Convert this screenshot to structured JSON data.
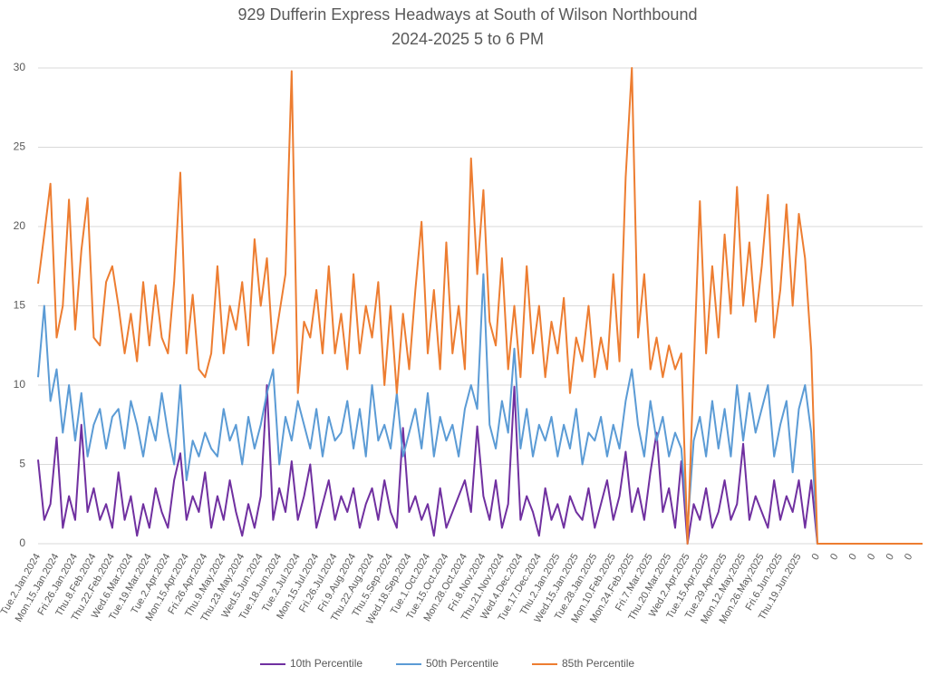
{
  "chart_data": {
    "type": "line",
    "title": "929 Dufferin Express Headways at South of Wilson Northbound",
    "subtitle": "2024-2025 5 to 6 PM",
    "categories": [
      "Tue.2.Jan.2024",
      null,
      null,
      "Mon.15.Jan.2024",
      null,
      null,
      "Fri.26.Jan.2024",
      null,
      null,
      "Thu.8.Feb.2024",
      null,
      null,
      "Thu.22.Feb.2024",
      null,
      null,
      "Wed.6.Mar.2024",
      null,
      null,
      "Tue.19.Mar.2024",
      null,
      null,
      "Tue.2.Apr.2024",
      null,
      null,
      "Mon.15.Apr.2024",
      null,
      null,
      "Fri.26.Apr.2024",
      null,
      null,
      "Thu.9.May.2024",
      null,
      null,
      "Thu.23.May.2024",
      null,
      null,
      "Wed.5.Jun.2024",
      null,
      null,
      "Tue.18.Jun.2024",
      null,
      null,
      "Tue.2.Jul.2024",
      null,
      null,
      "Mon.15.Jul.2024",
      null,
      null,
      "Fri.26.Jul.2024",
      null,
      null,
      "Fri.9.Aug.2024",
      null,
      null,
      "Thu.22.Aug.2024",
      null,
      null,
      "Thu.5.Sep.2024",
      null,
      null,
      "Wed.18.Sep.2024",
      null,
      null,
      "Tue.1.Oct.2024",
      null,
      null,
      "Tue.15.Oct.2024",
      null,
      null,
      "Mon.28.Oct.2024",
      null,
      null,
      "Fri.8.Nov.2024",
      null,
      null,
      "Thu.21.Nov.2024",
      null,
      null,
      "Wed.4.Dec.2024",
      null,
      null,
      "Tue.17.Dec.2024",
      null,
      null,
      "Thu.2.Jan.2025",
      null,
      null,
      "Wed.15.Jan.2025",
      null,
      null,
      "Tue.28.Jan.2025",
      null,
      null,
      "Mon.10.Feb.2025",
      null,
      null,
      "Mon.24.Feb.2025",
      null,
      null,
      "Fri.7.Mar.2025",
      null,
      null,
      "Thu.20.Mar.2025",
      null,
      null,
      "Wed.2.Apr.2025",
      null,
      null,
      "Tue.15.Apr.2025",
      null,
      null,
      "Tue.29.Apr.2025",
      null,
      null,
      "Mon.12.May.2025",
      null,
      null,
      "Mon.26.May.2025",
      null,
      null,
      "Fri.6.Jun.2025",
      null,
      null,
      "Thu.19.Jun.2025",
      null,
      null,
      "0",
      null,
      null,
      "0",
      null,
      null,
      "0",
      null,
      null,
      "0",
      null,
      null,
      "0",
      null,
      null,
      "0",
      null,
      null
    ],
    "series": [
      {
        "name": "10th Percentile",
        "color": "#7030a0",
        "values": [
          5.3,
          1.5,
          2.5,
          6.7,
          1.0,
          3.0,
          1.5,
          7.5,
          2.0,
          3.5,
          1.5,
          2.5,
          1.0,
          4.5,
          1.5,
          3.0,
          0.5,
          2.5,
          1.0,
          3.5,
          2.0,
          1.0,
          4.0,
          5.7,
          1.5,
          3.0,
          2.0,
          4.5,
          1.0,
          3.0,
          1.5,
          4.0,
          2.0,
          0.5,
          2.5,
          1.0,
          3.0,
          10.0,
          1.5,
          3.5,
          2.0,
          5.2,
          1.5,
          3.0,
          5.0,
          1.0,
          2.5,
          4.0,
          1.5,
          3.0,
          2.0,
          3.5,
          1.0,
          2.5,
          3.5,
          1.5,
          4.0,
          2.0,
          1.0,
          7.3,
          2.0,
          3.0,
          1.5,
          2.5,
          0.5,
          3.5,
          1.0,
          2.0,
          3.0,
          4.0,
          2.0,
          7.4,
          3.0,
          1.5,
          4.0,
          1.0,
          2.5,
          9.9,
          1.5,
          3.0,
          2.0,
          0.5,
          3.5,
          1.5,
          2.5,
          1.0,
          3.0,
          2.0,
          1.5,
          3.5,
          1.0,
          2.5,
          4.0,
          1.5,
          3.0,
          5.8,
          2.0,
          3.5,
          1.5,
          4.5,
          7.0,
          2.0,
          3.5,
          1.0,
          5.2,
          0.0,
          2.5,
          1.5,
          3.5,
          1.0,
          2.0,
          4.0,
          1.5,
          2.5,
          6.3,
          1.5,
          3.0,
          2.0,
          1.0,
          4.0,
          1.5,
          3.0,
          2.0,
          4.0,
          1.0,
          4.0,
          0,
          0,
          0,
          0,
          0,
          0,
          0,
          0,
          0,
          0,
          0,
          0,
          0,
          0,
          0,
          0,
          0,
          0
        ]
      },
      {
        "name": "50th Percentile",
        "color": "#5b9bd5",
        "values": [
          10.5,
          15.0,
          9.0,
          11.0,
          7.0,
          10.0,
          6.5,
          9.5,
          5.5,
          7.5,
          8.5,
          6.0,
          8.0,
          8.5,
          6.0,
          9.0,
          7.5,
          5.5,
          8.0,
          6.5,
          9.5,
          7.0,
          5.0,
          10.0,
          4.0,
          6.5,
          5.5,
          7.0,
          6.0,
          5.5,
          8.5,
          6.5,
          7.5,
          5.0,
          8.0,
          6.0,
          7.5,
          9.5,
          11.0,
          5.0,
          8.0,
          6.5,
          9.0,
          7.5,
          6.0,
          8.5,
          5.5,
          8.0,
          6.5,
          7.0,
          9.0,
          6.0,
          8.5,
          5.5,
          10.0,
          6.5,
          7.5,
          6.0,
          9.5,
          5.5,
          7.0,
          8.5,
          6.0,
          9.5,
          5.5,
          8.0,
          6.5,
          7.5,
          5.5,
          8.5,
          10.0,
          8.5,
          17.0,
          7.5,
          6.0,
          9.0,
          7.0,
          12.3,
          6.0,
          8.5,
          5.5,
          7.5,
          6.5,
          8.0,
          5.5,
          7.5,
          6.0,
          8.5,
          5.0,
          7.0,
          6.5,
          8.0,
          5.5,
          7.5,
          6.0,
          9.0,
          11.0,
          7.5,
          5.5,
          9.0,
          6.5,
          8.0,
          5.5,
          7.0,
          6.0,
          1.0,
          6.5,
          8.0,
          5.5,
          9.0,
          6.0,
          8.5,
          5.5,
          10.0,
          6.5,
          9.5,
          7.0,
          8.5,
          10.0,
          5.5,
          7.5,
          9.0,
          4.5,
          8.5,
          10.0,
          7.0,
          0,
          0,
          0,
          0,
          0,
          0,
          0,
          0,
          0,
          0,
          0,
          0,
          0,
          0,
          0,
          0,
          0,
          0
        ]
      },
      {
        "name": "85th Percentile",
        "color": "#ed7d31",
        "values": [
          16.4,
          19.5,
          22.7,
          13.0,
          15.0,
          21.7,
          13.5,
          18.5,
          21.8,
          13.0,
          12.5,
          16.5,
          17.5,
          15.0,
          12.0,
          14.5,
          11.5,
          16.5,
          12.5,
          16.3,
          13.0,
          12.0,
          16.5,
          23.4,
          12.0,
          15.7,
          11.0,
          10.5,
          12.0,
          17.5,
          12.0,
          15.0,
          13.5,
          16.5,
          12.5,
          19.2,
          15.0,
          18.0,
          12.0,
          14.5,
          17.0,
          29.8,
          9.5,
          14.0,
          13.0,
          16.0,
          12.0,
          17.5,
          12.0,
          14.5,
          11.0,
          17.0,
          12.0,
          15.0,
          13.0,
          16.5,
          10.0,
          15.0,
          9.5,
          14.5,
          11.0,
          16.0,
          20.3,
          12.0,
          16.0,
          11.0,
          19.0,
          12.0,
          15.0,
          11.0,
          24.3,
          17.0,
          22.3,
          14.0,
          12.5,
          18.0,
          11.0,
          15.0,
          10.5,
          17.5,
          12.0,
          15.0,
          10.5,
          14.0,
          12.0,
          15.5,
          9.5,
          13.0,
          11.5,
          15.0,
          10.5,
          13.0,
          11.0,
          17.0,
          11.5,
          23.1,
          30.0,
          13.0,
          17.0,
          11.0,
          13.0,
          10.5,
          12.5,
          11.0,
          12.0,
          0.0,
          11.0,
          21.6,
          12.0,
          17.5,
          13.0,
          19.5,
          14.5,
          22.5,
          15.0,
          19.0,
          14.0,
          17.5,
          22.0,
          13.0,
          16.0,
          21.4,
          15.0,
          20.8,
          18.0,
          12.2,
          0,
          0,
          0,
          0,
          0,
          0,
          0,
          0,
          0,
          0,
          0,
          0,
          0,
          0,
          0,
          0,
          0,
          0
        ]
      }
    ],
    "ylim": [
      0,
      30
    ],
    "yticks": [
      0,
      5,
      10,
      15,
      20,
      25,
      30
    ],
    "grid": true,
    "legend": "bottom"
  }
}
